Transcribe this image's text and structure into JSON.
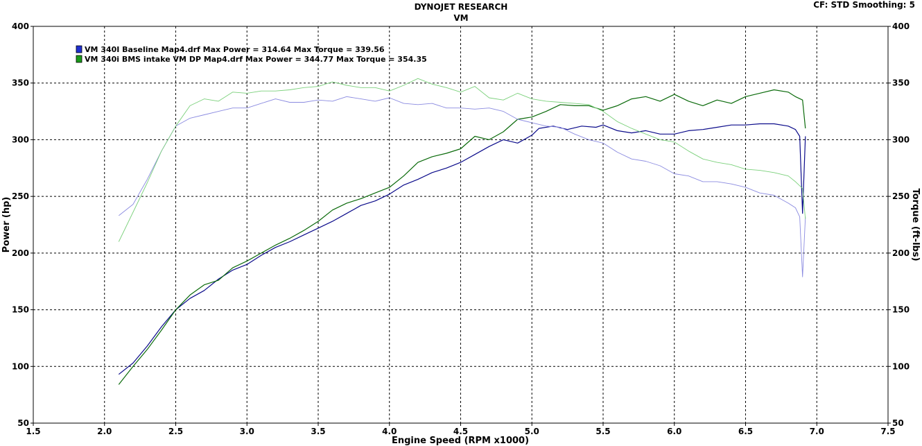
{
  "header": {
    "title": "DYNOJET RESEARCH",
    "subtitle": "VM",
    "cf_info": "CF: STD  Smoothing: 5"
  },
  "chart_data": {
    "type": "line",
    "xlabel": "Engine Speed (RPM x1000)",
    "ylabel_left": "Power (hp)",
    "ylabel_right": "Torque (ft-lbs)",
    "xlim": [
      1.5,
      7.5
    ],
    "ylim": [
      50,
      400
    ],
    "x_ticks": [
      "1.5",
      "2.0",
      "2.5",
      "3.0",
      "3.5",
      "4.0",
      "4.5",
      "5.0",
      "5.5",
      "6.0",
      "6.5",
      "7.0",
      "7.5"
    ],
    "y_ticks": [
      "50",
      "100",
      "150",
      "200",
      "250",
      "300",
      "350",
      "400"
    ],
    "grid": true,
    "legend_position": "top-left",
    "legend": [
      {
        "label": "VM 340I Baseline Map4.drf Max Power = 314.64     Max Torque = 339.56",
        "color": "#1f2fd0"
      },
      {
        "label": "VM 340i BMS intake VM DP Map4.drf Max Power = 344.77     Max Torque = 354.35",
        "color": "#1a9a1a"
      }
    ],
    "series": [
      {
        "key": "baseline_power",
        "color": "#0a0a8a",
        "width": 1.2,
        "points": [
          [
            2.1,
            93
          ],
          [
            2.2,
            103
          ],
          [
            2.3,
            118
          ],
          [
            2.4,
            135
          ],
          [
            2.5,
            150
          ],
          [
            2.6,
            160
          ],
          [
            2.7,
            167
          ],
          [
            2.8,
            177
          ],
          [
            2.9,
            185
          ],
          [
            3.0,
            190
          ],
          [
            3.1,
            198
          ],
          [
            3.2,
            205
          ],
          [
            3.3,
            210
          ],
          [
            3.4,
            216
          ],
          [
            3.5,
            222
          ],
          [
            3.6,
            228
          ],
          [
            3.7,
            235
          ],
          [
            3.8,
            242
          ],
          [
            3.9,
            246
          ],
          [
            4.0,
            252
          ],
          [
            4.1,
            260
          ],
          [
            4.2,
            265
          ],
          [
            4.3,
            271
          ],
          [
            4.4,
            275
          ],
          [
            4.5,
            280
          ],
          [
            4.6,
            287
          ],
          [
            4.7,
            294
          ],
          [
            4.8,
            300
          ],
          [
            4.9,
            297
          ],
          [
            5.0,
            304
          ],
          [
            5.05,
            310
          ],
          [
            5.15,
            312
          ],
          [
            5.25,
            309
          ],
          [
            5.35,
            312
          ],
          [
            5.45,
            311
          ],
          [
            5.5,
            313
          ],
          [
            5.6,
            308
          ],
          [
            5.7,
            306
          ],
          [
            5.8,
            308
          ],
          [
            5.9,
            305
          ],
          [
            6.0,
            305
          ],
          [
            6.1,
            308
          ],
          [
            6.2,
            309
          ],
          [
            6.3,
            311
          ],
          [
            6.4,
            313
          ],
          [
            6.5,
            313
          ],
          [
            6.6,
            314
          ],
          [
            6.7,
            314
          ],
          [
            6.8,
            312
          ],
          [
            6.85,
            309
          ],
          [
            6.88,
            303
          ],
          [
            6.9,
            235
          ],
          [
            6.92,
            303
          ]
        ]
      },
      {
        "key": "bms_power",
        "color": "#0a6a0a",
        "width": 1.2,
        "points": [
          [
            2.1,
            84
          ],
          [
            2.2,
            100
          ],
          [
            2.3,
            115
          ],
          [
            2.4,
            132
          ],
          [
            2.5,
            150
          ],
          [
            2.6,
            163
          ],
          [
            2.7,
            172
          ],
          [
            2.8,
            176
          ],
          [
            2.9,
            187
          ],
          [
            3.0,
            193
          ],
          [
            3.1,
            200
          ],
          [
            3.2,
            207
          ],
          [
            3.3,
            213
          ],
          [
            3.4,
            220
          ],
          [
            3.5,
            228
          ],
          [
            3.6,
            238
          ],
          [
            3.7,
            244
          ],
          [
            3.8,
            248
          ],
          [
            3.9,
            253
          ],
          [
            4.0,
            258
          ],
          [
            4.1,
            268
          ],
          [
            4.2,
            280
          ],
          [
            4.3,
            285
          ],
          [
            4.4,
            288
          ],
          [
            4.5,
            292
          ],
          [
            4.6,
            303
          ],
          [
            4.7,
            300
          ],
          [
            4.8,
            307
          ],
          [
            4.9,
            318
          ],
          [
            5.0,
            320
          ],
          [
            5.1,
            325
          ],
          [
            5.2,
            331
          ],
          [
            5.3,
            330
          ],
          [
            5.4,
            330
          ],
          [
            5.5,
            326
          ],
          [
            5.6,
            330
          ],
          [
            5.7,
            336
          ],
          [
            5.8,
            338
          ],
          [
            5.9,
            334
          ],
          [
            6.0,
            340
          ],
          [
            6.1,
            334
          ],
          [
            6.2,
            330
          ],
          [
            6.3,
            335
          ],
          [
            6.4,
            332
          ],
          [
            6.5,
            338
          ],
          [
            6.6,
            341
          ],
          [
            6.7,
            344
          ],
          [
            6.8,
            342
          ],
          [
            6.85,
            338
          ],
          [
            6.9,
            335
          ],
          [
            6.92,
            310
          ]
        ]
      },
      {
        "key": "baseline_torque",
        "color": "#8a8ae0",
        "width": 0.9,
        "points": [
          [
            2.1,
            233
          ],
          [
            2.2,
            243
          ],
          [
            2.3,
            265
          ],
          [
            2.4,
            290
          ],
          [
            2.5,
            312
          ],
          [
            2.6,
            319
          ],
          [
            2.7,
            322
          ],
          [
            2.8,
            325
          ],
          [
            2.9,
            328
          ],
          [
            3.0,
            328
          ],
          [
            3.1,
            332
          ],
          [
            3.2,
            336
          ],
          [
            3.3,
            333
          ],
          [
            3.4,
            333
          ],
          [
            3.5,
            335
          ],
          [
            3.6,
            334
          ],
          [
            3.7,
            338
          ],
          [
            3.8,
            336
          ],
          [
            3.9,
            334
          ],
          [
            4.0,
            337
          ],
          [
            4.1,
            332
          ],
          [
            4.2,
            331
          ],
          [
            4.3,
            332
          ],
          [
            4.4,
            328
          ],
          [
            4.5,
            328
          ],
          [
            4.6,
            327
          ],
          [
            4.7,
            328
          ],
          [
            4.8,
            325
          ],
          [
            4.9,
            318
          ],
          [
            5.0,
            315
          ],
          [
            5.1,
            312
          ],
          [
            5.2,
            311
          ],
          [
            5.3,
            305
          ],
          [
            5.4,
            300
          ],
          [
            5.5,
            297
          ],
          [
            5.6,
            289
          ],
          [
            5.7,
            283
          ],
          [
            5.8,
            281
          ],
          [
            5.9,
            277
          ],
          [
            6.0,
            270
          ],
          [
            6.1,
            268
          ],
          [
            6.2,
            263
          ],
          [
            6.3,
            263
          ],
          [
            6.4,
            261
          ],
          [
            6.5,
            258
          ],
          [
            6.6,
            253
          ],
          [
            6.7,
            251
          ],
          [
            6.8,
            244
          ],
          [
            6.85,
            240
          ],
          [
            6.88,
            232
          ],
          [
            6.9,
            179
          ],
          [
            6.92,
            232
          ]
        ]
      },
      {
        "key": "bms_torque",
        "color": "#7ad07a",
        "width": 0.9,
        "points": [
          [
            2.1,
            210
          ],
          [
            2.2,
            236
          ],
          [
            2.3,
            262
          ],
          [
            2.4,
            290
          ],
          [
            2.5,
            312
          ],
          [
            2.6,
            330
          ],
          [
            2.7,
            336
          ],
          [
            2.8,
            334
          ],
          [
            2.9,
            342
          ],
          [
            3.0,
            341
          ],
          [
            3.1,
            343
          ],
          [
            3.2,
            343
          ],
          [
            3.3,
            344
          ],
          [
            3.4,
            346
          ],
          [
            3.5,
            347
          ],
          [
            3.6,
            351
          ],
          [
            3.7,
            348
          ],
          [
            3.8,
            346
          ],
          [
            3.9,
            346
          ],
          [
            4.0,
            343
          ],
          [
            4.1,
            348
          ],
          [
            4.2,
            354
          ],
          [
            4.3,
            349
          ],
          [
            4.4,
            346
          ],
          [
            4.5,
            342
          ],
          [
            4.6,
            347
          ],
          [
            4.7,
            337
          ],
          [
            4.8,
            335
          ],
          [
            4.9,
            341
          ],
          [
            5.0,
            336
          ],
          [
            5.1,
            334
          ],
          [
            5.2,
            333
          ],
          [
            5.3,
            332
          ],
          [
            5.4,
            331
          ],
          [
            5.5,
            325
          ],
          [
            5.6,
            316
          ],
          [
            5.7,
            310
          ],
          [
            5.8,
            305
          ],
          [
            5.9,
            300
          ],
          [
            6.0,
            298
          ],
          [
            6.1,
            290
          ],
          [
            6.2,
            283
          ],
          [
            6.3,
            280
          ],
          [
            6.4,
            278
          ],
          [
            6.5,
            274
          ],
          [
            6.6,
            273
          ],
          [
            6.7,
            271
          ],
          [
            6.8,
            268
          ],
          [
            6.85,
            263
          ],
          [
            6.9,
            257
          ],
          [
            6.92,
            230
          ]
        ]
      }
    ]
  }
}
